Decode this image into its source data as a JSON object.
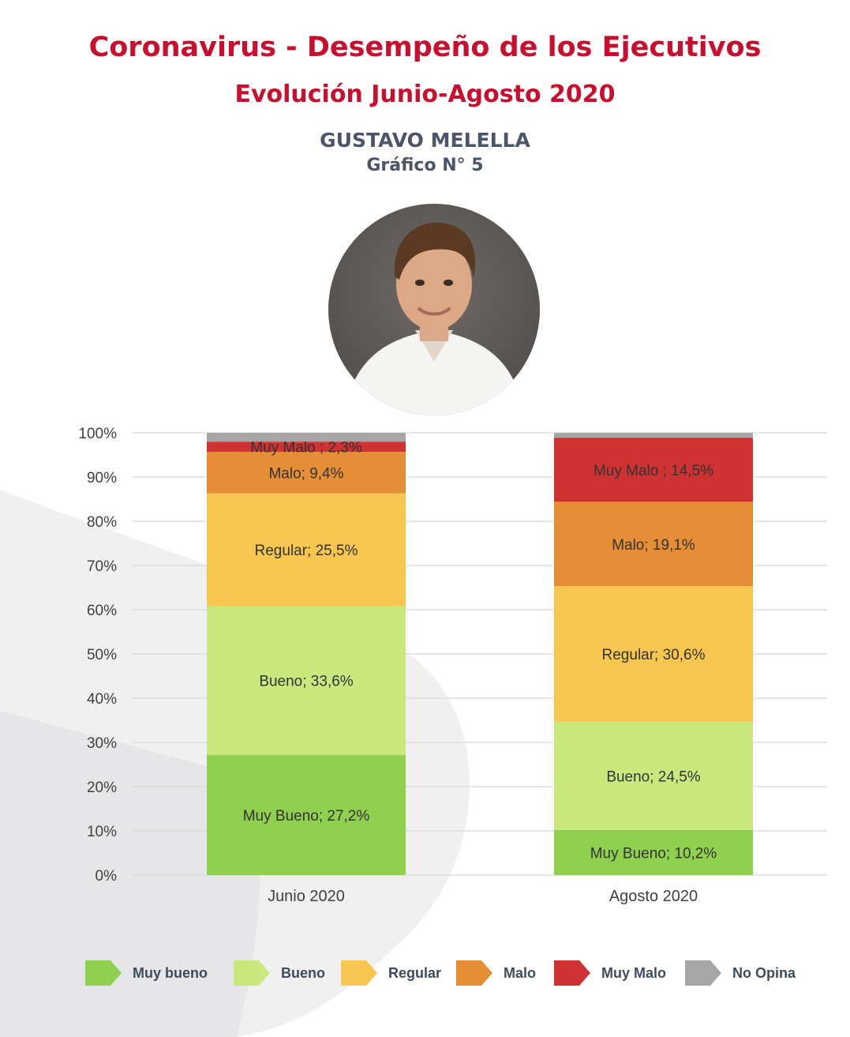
{
  "header": {
    "title": "Coronavirus - Desempeño de los Ejecutivos",
    "subtitle": "Evolución Junio-Agosto 2020",
    "person_name": "GUSTAVO MELELLA",
    "figure_number": "Gráfico N° 5"
  },
  "colors": {
    "title": "#c8102e",
    "muy_bueno": "#8fd14f",
    "bueno": "#c9e97e",
    "regular": "#f7c64f",
    "malo": "#e58e35",
    "muy_malo": "#cf3232",
    "no_opina": "#a6a6a6"
  },
  "portrait": {
    "icon": "portrait-photo"
  },
  "chart_data": {
    "type": "bar",
    "stacked": true,
    "categories": [
      "Junio 2020",
      "Agosto 2020"
    ],
    "series": [
      {
        "name": "Muy bueno",
        "values": [
          27.2,
          10.2
        ],
        "labels": [
          "Muy Bueno; 27,2%",
          "Muy Bueno; 10,2%"
        ]
      },
      {
        "name": "Bueno",
        "values": [
          33.6,
          24.5
        ],
        "labels": [
          "Bueno; 33,6%",
          "Bueno; 24,5%"
        ]
      },
      {
        "name": "Regular",
        "values": [
          25.5,
          30.6
        ],
        "labels": [
          "Regular; 25,5%",
          "Regular; 30,6%"
        ]
      },
      {
        "name": "Malo",
        "values": [
          9.4,
          19.1
        ],
        "labels": [
          "Malo; 9,4%",
          "Malo; 19,1%"
        ]
      },
      {
        "name": "Muy Malo",
        "values": [
          2.3,
          14.5
        ],
        "labels": [
          "Muy Malo ; 2,3%",
          "Muy Malo ; 14,5%"
        ]
      },
      {
        "name": "No Opina",
        "values": [
          2.0,
          1.1
        ],
        "labels": [
          "",
          ""
        ]
      }
    ],
    "y_ticks": [
      "0%",
      "10%",
      "20%",
      "30%",
      "40%",
      "50%",
      "60%",
      "70%",
      "80%",
      "90%",
      "100%"
    ],
    "ylim": [
      0,
      100
    ],
    "grid": true,
    "legend_position": "bottom"
  },
  "legend": {
    "items": [
      {
        "label": "Muy bueno",
        "color": "#8fd14f"
      },
      {
        "label": "Bueno",
        "color": "#c9e97e"
      },
      {
        "label": "Regular",
        "color": "#f7c64f"
      },
      {
        "label": "Malo",
        "color": "#e58e35"
      },
      {
        "label": "Muy Malo",
        "color": "#cf3232"
      },
      {
        "label": "No Opina",
        "color": "#a6a6a6"
      }
    ]
  }
}
